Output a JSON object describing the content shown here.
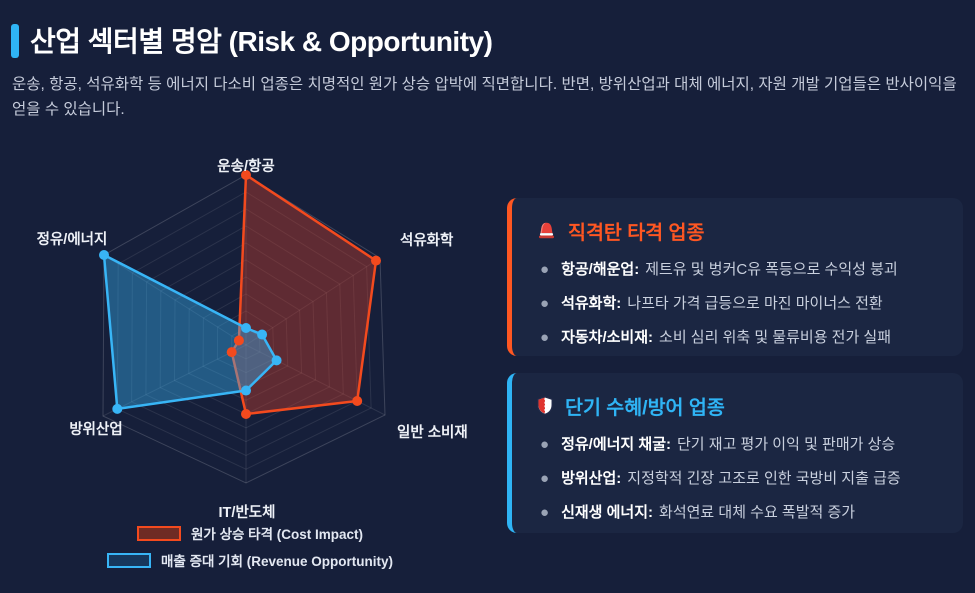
{
  "page": {
    "bg": "#161F3A",
    "accent": "#2FB4F5"
  },
  "header": {
    "title": "산업 섹터별 명암 (Risk & Opportunity)",
    "subtitle": "운송, 항공, 석유화학 등 에너지 다소비 업종은 치명적인 원가 상승 압박에 직면합니다. 반면, 방위산업과 대체 에너지, 자원 개발 기업들은 반사이익을 얻을 수 있습니다."
  },
  "chart_data": {
    "type": "radar",
    "categories": [
      "운송/항공",
      "석유화학",
      "일반 소비재",
      "IT/반도체",
      "방위산업",
      "정유/에너지"
    ],
    "scale": {
      "min": 0,
      "max": 10,
      "rings": 10,
      "grid": "hexagon"
    },
    "legend_position": "bottom",
    "series": [
      {
        "name": "원가 상승 타격 (Cost Impact)",
        "color": "#F34A1E",
        "fill": "rgba(216,62,40,0.38)",
        "swatch_fill": "#6E2B24",
        "values": [
          10,
          9.7,
          8,
          5,
          1,
          0.5
        ]
      },
      {
        "name": "매출 증대 기회 (Revenue Opportunity)",
        "color": "#38B5F6",
        "fill": "rgba(56,181,246,0.40)",
        "swatch_fill": "#17375C",
        "values": [
          1,
          1.2,
          2.2,
          3.3,
          9,
          10
        ]
      }
    ]
  },
  "cards": [
    {
      "icon": "alarm-light-icon",
      "title": "직격탄 타격 업종",
      "accent": "#FF5722",
      "bullets": [
        {
          "lead": "항공/해운업:",
          "text": "제트유 및 벙커C유 폭등으로 수익성 붕괴"
        },
        {
          "lead": "석유화학:",
          "text": "나프타 가격 급등으로 마진 마이너스 전환"
        },
        {
          "lead": "자동차/소비재:",
          "text": "소비 심리 위축 및 물류비용 전가 실패"
        }
      ]
    },
    {
      "icon": "shield-icon",
      "title": "단기 수혜/방어 업종",
      "accent": "#2FB4F5",
      "bullets": [
        {
          "lead": "정유/에너지 채굴:",
          "text": "단기 재고 평가 이익 및 판매가 상승"
        },
        {
          "lead": "방위산업:",
          "text": "지정학적 긴장 고조로 인한 국방비 지출 급증"
        },
        {
          "lead": "신재생 에너지:",
          "text": "화석연료 대체 수요 폭발적 증가"
        }
      ]
    }
  ]
}
